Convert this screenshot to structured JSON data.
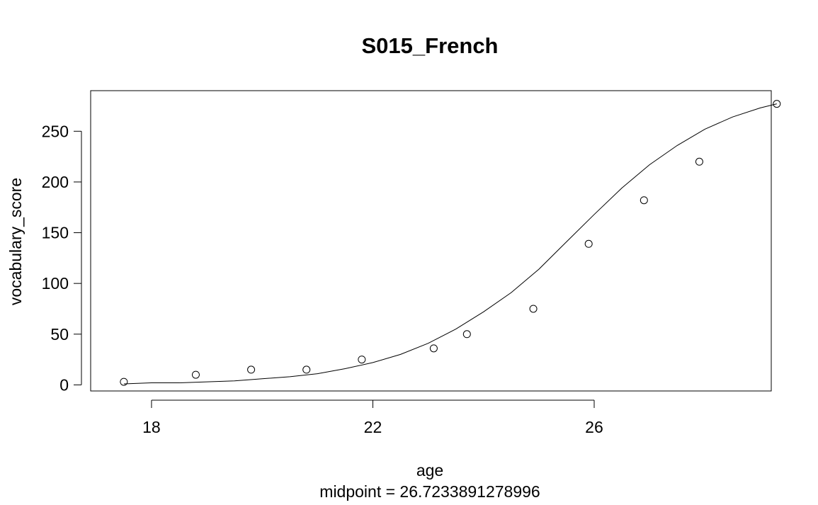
{
  "chart_data": {
    "type": "scatter",
    "title": "S015_French",
    "xlabel": "age",
    "subtitle": "midpoint = 26.7233891278996",
    "ylabel": "vocabulary_score",
    "xlim": [
      16.9,
      29.2
    ],
    "ylim": [
      -6,
      290
    ],
    "x_ticks": [
      18,
      22,
      26
    ],
    "y_ticks": [
      0,
      50,
      100,
      150,
      200,
      250
    ],
    "grid": false,
    "legend": "none",
    "points": {
      "x": [
        17.5,
        18.8,
        19.8,
        20.8,
        21.8,
        23.1,
        23.7,
        24.9,
        25.9,
        26.9,
        27.9,
        29.3
      ],
      "y": [
        3,
        10,
        15,
        15,
        25,
        36,
        50,
        75,
        139,
        182,
        220,
        277
      ]
    },
    "fit_curve": {
      "x": [
        17.5,
        18.0,
        18.5,
        19.0,
        19.5,
        20.0,
        20.5,
        21.0,
        21.5,
        22.0,
        22.5,
        23.0,
        23.5,
        24.0,
        24.5,
        25.0,
        25.5,
        26.0,
        26.5,
        27.0,
        27.5,
        28.0,
        28.5,
        29.0,
        29.3
      ],
      "y": [
        1,
        2,
        2,
        3,
        4,
        6,
        8,
        11,
        16,
        22,
        30,
        41,
        55,
        72,
        91,
        114,
        141,
        168,
        194,
        217,
        236,
        252,
        264,
        273,
        277
      ]
    },
    "colors": {
      "points": "#000000",
      "line": "#000000",
      "frame": "#000000"
    }
  }
}
